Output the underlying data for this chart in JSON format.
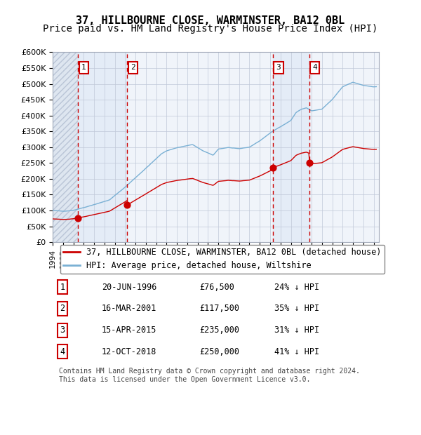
{
  "title": "37, HILLBOURNE CLOSE, WARMINSTER, BA12 0BL",
  "subtitle": "Price paid vs. HM Land Registry's House Price Index (HPI)",
  "xlabel": "",
  "ylabel": "",
  "ylim": [
    0,
    600000
  ],
  "yticks": [
    0,
    50000,
    100000,
    150000,
    200000,
    250000,
    300000,
    350000,
    400000,
    450000,
    500000,
    550000,
    600000
  ],
  "background_color": "#ffffff",
  "plot_bg_color": "#f0f4fa",
  "hatch_color": "#d0d8e8",
  "sale_color": "#cc0000",
  "hpi_color": "#7ab0d4",
  "dashed_color": "#cc0000",
  "legend_box_color": "#ffffff",
  "sale_label": "37, HILLBOURNE CLOSE, WARMINSTER, BA12 0BL (detached house)",
  "hpi_label": "HPI: Average price, detached house, Wiltshire",
  "sales": [
    {
      "date": "1996-06-20",
      "price": 76500,
      "label": "1"
    },
    {
      "date": "2001-03-16",
      "price": 117500,
      "label": "2"
    },
    {
      "date": "2015-04-15",
      "price": 235000,
      "label": "3"
    },
    {
      "date": "2018-10-12",
      "price": 250000,
      "label": "4"
    }
  ],
  "sale_annotations": [
    {
      "num": "1",
      "date": "20-JUN-1996",
      "price": "£76,500",
      "pct": "24% ↓ HPI"
    },
    {
      "num": "2",
      "date": "16-MAR-2001",
      "price": "£117,500",
      "pct": "35% ↓ HPI"
    },
    {
      "num": "3",
      "date": "15-APR-2015",
      "price": "£235,000",
      "pct": "31% ↓ HPI"
    },
    {
      "num": "4",
      "date": "12-OCT-2018",
      "price": "£250,000",
      "pct": "41% ↓ HPI"
    }
  ],
  "footer": "Contains HM Land Registry data © Crown copyright and database right 2024.\nThis data is licensed under the Open Government Licence v3.0.",
  "title_fontsize": 11,
  "subtitle_fontsize": 10,
  "tick_fontsize": 8,
  "legend_fontsize": 8.5,
  "annotation_fontsize": 8.5,
  "footer_fontsize": 7
}
